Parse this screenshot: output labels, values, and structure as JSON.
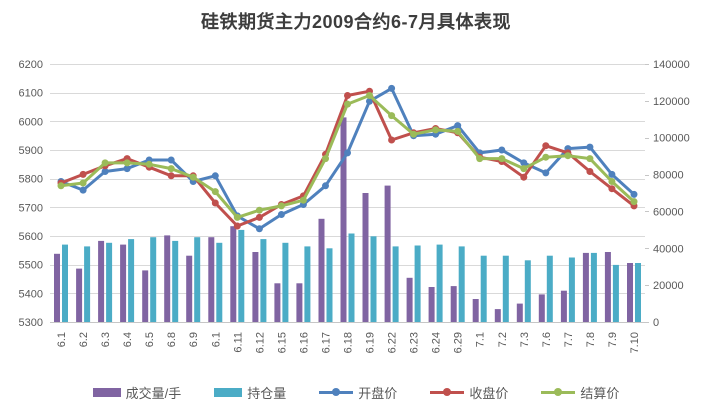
{
  "title": "硅铁期货主力2009合约6-7月具体表现",
  "chart_data": {
    "type": "combo-bar-line",
    "categories": [
      "6.1",
      "6.2",
      "6.3",
      "6.4",
      "6.5",
      "6.8",
      "6.9",
      "6.1",
      "6.11",
      "6.12",
      "6.15",
      "6.16",
      "6.17",
      "6.18",
      "6.19",
      "6.22",
      "6.23",
      "6.24",
      "6.29",
      "7.1",
      "7.2",
      "7.3",
      "7.6",
      "7.7",
      "7.8",
      "7.9",
      "7.10"
    ],
    "series": [
      {
        "id": "volume",
        "name": "成交量/手",
        "type": "bar",
        "axis": "right",
        "color": "#8064A2",
        "values": [
          37000,
          29000,
          44000,
          42000,
          28000,
          47000,
          36000,
          46000,
          52000,
          38000,
          21000,
          21000,
          56000,
          111000,
          70000,
          74000,
          24000,
          19000,
          19500,
          12500,
          7000,
          10000,
          15000,
          17000,
          37500,
          38000,
          32000
        ]
      },
      {
        "id": "open-interest",
        "name": "持仓量",
        "type": "bar",
        "axis": "right",
        "color": "#4BACC6",
        "values": [
          42000,
          41000,
          43000,
          45000,
          46000,
          44000,
          46000,
          43000,
          50000,
          45000,
          43000,
          41000,
          40000,
          48000,
          46500,
          41000,
          41500,
          42000,
          41000,
          36000,
          36000,
          33500,
          36000,
          35000,
          37500,
          31000,
          32000
        ]
      },
      {
        "id": "open-price",
        "name": "开盘价",
        "type": "line",
        "axis": "left",
        "color": "#4F81BD",
        "values": [
          5790,
          5760,
          5825,
          5835,
          5865,
          5865,
          5790,
          5810,
          5670,
          5625,
          5675,
          5710,
          5775,
          5890,
          6070,
          6115,
          5950,
          5955,
          5985,
          5890,
          5900,
          5855,
          5820,
          5905,
          5910,
          5815,
          5745
        ]
      },
      {
        "id": "close-price",
        "name": "收盘价",
        "type": "line",
        "axis": "left",
        "color": "#C0504D",
        "values": [
          5785,
          5815,
          5845,
          5870,
          5840,
          5810,
          5810,
          5715,
          5635,
          5665,
          5710,
          5740,
          5885,
          6090,
          6105,
          5935,
          5960,
          5975,
          5960,
          5875,
          5860,
          5805,
          5915,
          5890,
          5825,
          5765,
          5705
        ]
      },
      {
        "id": "settlement-price",
        "name": "结算价",
        "type": "line",
        "axis": "left",
        "color": "#9BBB59",
        "values": [
          5775,
          5785,
          5855,
          5855,
          5850,
          5835,
          5805,
          5755,
          5665,
          5690,
          5705,
          5725,
          5870,
          6060,
          6090,
          6020,
          5955,
          5970,
          5965,
          5870,
          5870,
          5835,
          5875,
          5880,
          5870,
          5790,
          5720
        ]
      }
    ],
    "left_axis": {
      "min": 5300,
      "max": 6200,
      "step": 100,
      "ticks": [
        "5300",
        "5400",
        "5500",
        "5600",
        "5700",
        "5800",
        "5900",
        "6000",
        "6100",
        "6200"
      ]
    },
    "right_axis": {
      "min": 0,
      "max": 140000,
      "step": 20000,
      "ticks": [
        "0",
        "20000",
        "40000",
        "60000",
        "80000",
        "100000",
        "120000",
        "140000"
      ]
    },
    "grid": true,
    "legend_position": "bottom",
    "text_color": "#595959",
    "grid_color": "#d9d9d9",
    "axis_line_color": "#c6c6c6",
    "title_color": "#3d3d3d"
  }
}
